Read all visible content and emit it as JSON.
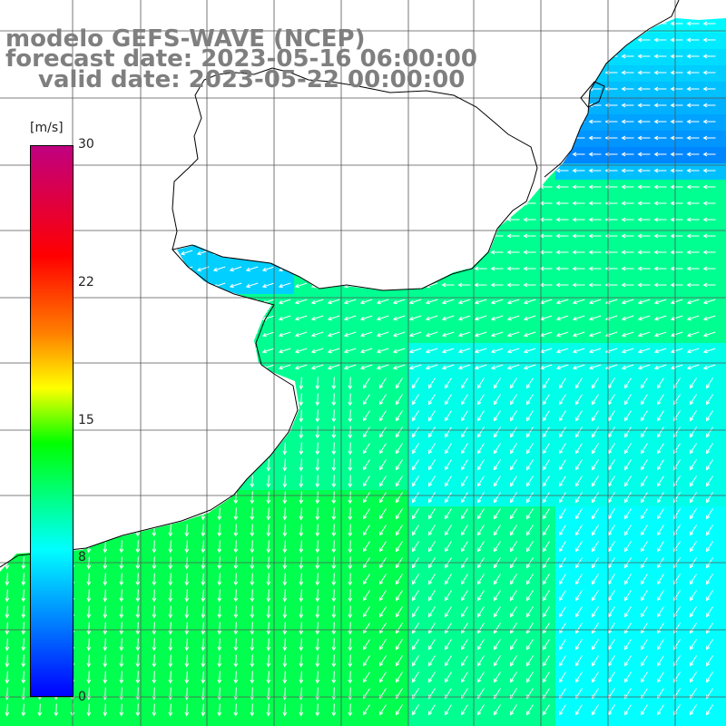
{
  "header": {
    "model": "modelo GEFS-WAVE (NCEP)",
    "forecast_date": "forecast date: 2023-05-16 06:00:00",
    "valid_date": "valid date: 2023-05-22 00:00:00"
  },
  "colorbar": {
    "unit": "[m/s]",
    "ticks": [
      "30",
      "22",
      "15",
      "8",
      "0"
    ],
    "range": [
      0,
      30
    ],
    "colors": [
      "#0000ff",
      "#00ffff",
      "#00ff00",
      "#ffff00",
      "#ff7f00",
      "#ff0000",
      "#c00080"
    ]
  },
  "colors": {
    "land": "#ffffff",
    "grid": "#555555",
    "coastline": "#000000",
    "title_text": "#7f7f7f",
    "arrow": "#ffffff"
  }
}
